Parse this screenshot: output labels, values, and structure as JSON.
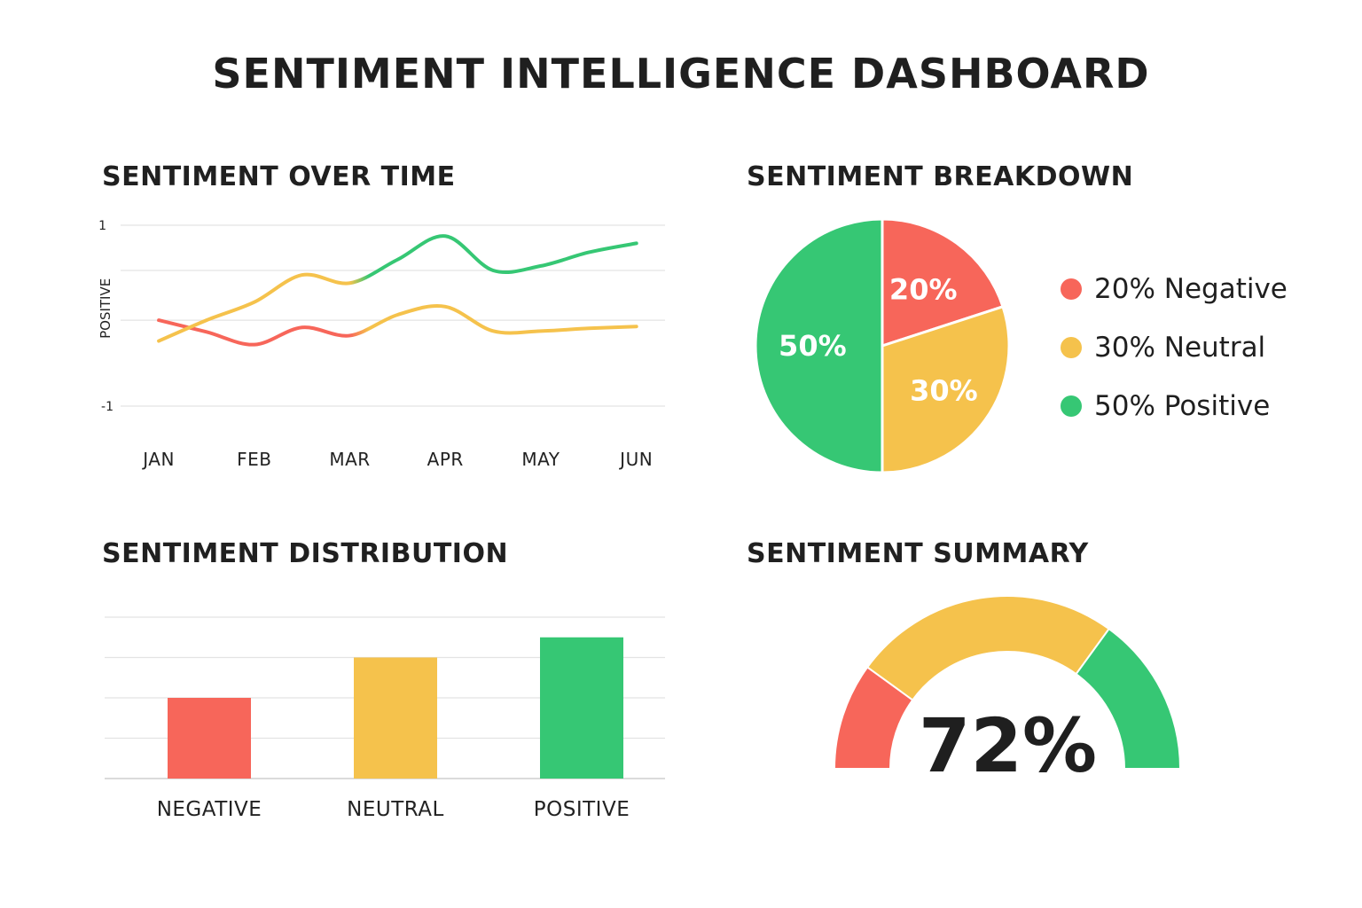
{
  "dashboard": {
    "title": "SENTIMENT INTELLIGENCE DASHBOARD"
  },
  "colors": {
    "negative": "#f7665a",
    "neutral": "#f5c24c",
    "positive": "#36c774",
    "grid": "#e3e3e3"
  },
  "sections": {
    "over_time": "SENTIMENT OVER TIME",
    "breakdown": "SENTIMENT BREAKDOWN",
    "distribution": "SENTIMENT DISTRIBUTION",
    "summary": "SENTIMENT SUMMARY"
  },
  "chart_data": [
    {
      "type": "line",
      "title": "SENTIMENT OVER TIME",
      "ylabel": "POSITIVE",
      "ylim": [
        -1,
        1
      ],
      "ytick_labels": [
        "1",
        "-1"
      ],
      "categories": [
        "JAN",
        "FEB",
        "MAR",
        "APR",
        "MAY",
        "JUN"
      ],
      "series": [
        {
          "color_role": "negative-to-neutral",
          "x": [
            0,
            0.5,
            1,
            1.5,
            2,
            2.5,
            3,
            3.5,
            4,
            4.5,
            5
          ],
          "y": [
            -0.05,
            -0.18,
            -0.32,
            -0.13,
            -0.22,
            0.01,
            0.1,
            -0.17,
            -0.17,
            -0.14,
            -0.12
          ],
          "color_segments": [
            {
              "from": 0,
              "to": 2.1,
              "color": "#f7665a"
            },
            {
              "from": 2.1,
              "to": 5,
              "color": "#f5c24c"
            }
          ]
        },
        {
          "color_role": "neutral-to-positive",
          "x": [
            0,
            0.5,
            1,
            1.5,
            2,
            2.5,
            3,
            3.5,
            4,
            4.5,
            5
          ],
          "y": [
            -0.28,
            -0.05,
            0.15,
            0.45,
            0.36,
            0.62,
            0.88,
            0.5,
            0.55,
            0.7,
            0.8
          ],
          "color_segments": [
            {
              "from": 0,
              "to": 2.1,
              "color": "#f5c24c"
            },
            {
              "from": 2.1,
              "to": 5,
              "color": "#36c774"
            }
          ]
        }
      ]
    },
    {
      "type": "pie",
      "title": "SENTIMENT BREAKDOWN",
      "slices": [
        {
          "name": "Negative",
          "value": 20,
          "label": "20%",
          "color": "#f7665a"
        },
        {
          "name": "Neutral",
          "value": 30,
          "label": "30%",
          "color": "#f5c24c"
        },
        {
          "name": "Positive",
          "value": 50,
          "label": "50%",
          "color": "#36c774"
        }
      ],
      "legend": [
        {
          "label": "20% Negative",
          "color": "#f7665a"
        },
        {
          "label": "30% Neutral",
          "color": "#f5c24c"
        },
        {
          "label": "50% Positive",
          "color": "#36c774"
        }
      ],
      "legend_position": "right"
    },
    {
      "type": "bar",
      "title": "SENTIMENT DISTRIBUTION",
      "categories": [
        "NEGATIVE",
        "NEUTRAL",
        "POSITIVE"
      ],
      "values": [
        20,
        30,
        35
      ],
      "ylim": [
        0,
        40
      ],
      "grid": true,
      "colors": [
        "#f7665a",
        "#f5c24c",
        "#36c774"
      ]
    },
    {
      "type": "gauge",
      "title": "SENTIMENT SUMMARY",
      "value": 72,
      "display": "72%",
      "bands": [
        {
          "name": "negative",
          "span": 0.2,
          "color": "#f7665a"
        },
        {
          "name": "neutral",
          "span": 0.5,
          "color": "#f5c24c"
        },
        {
          "name": "positive",
          "span": 0.3,
          "color": "#36c774"
        }
      ]
    }
  ]
}
